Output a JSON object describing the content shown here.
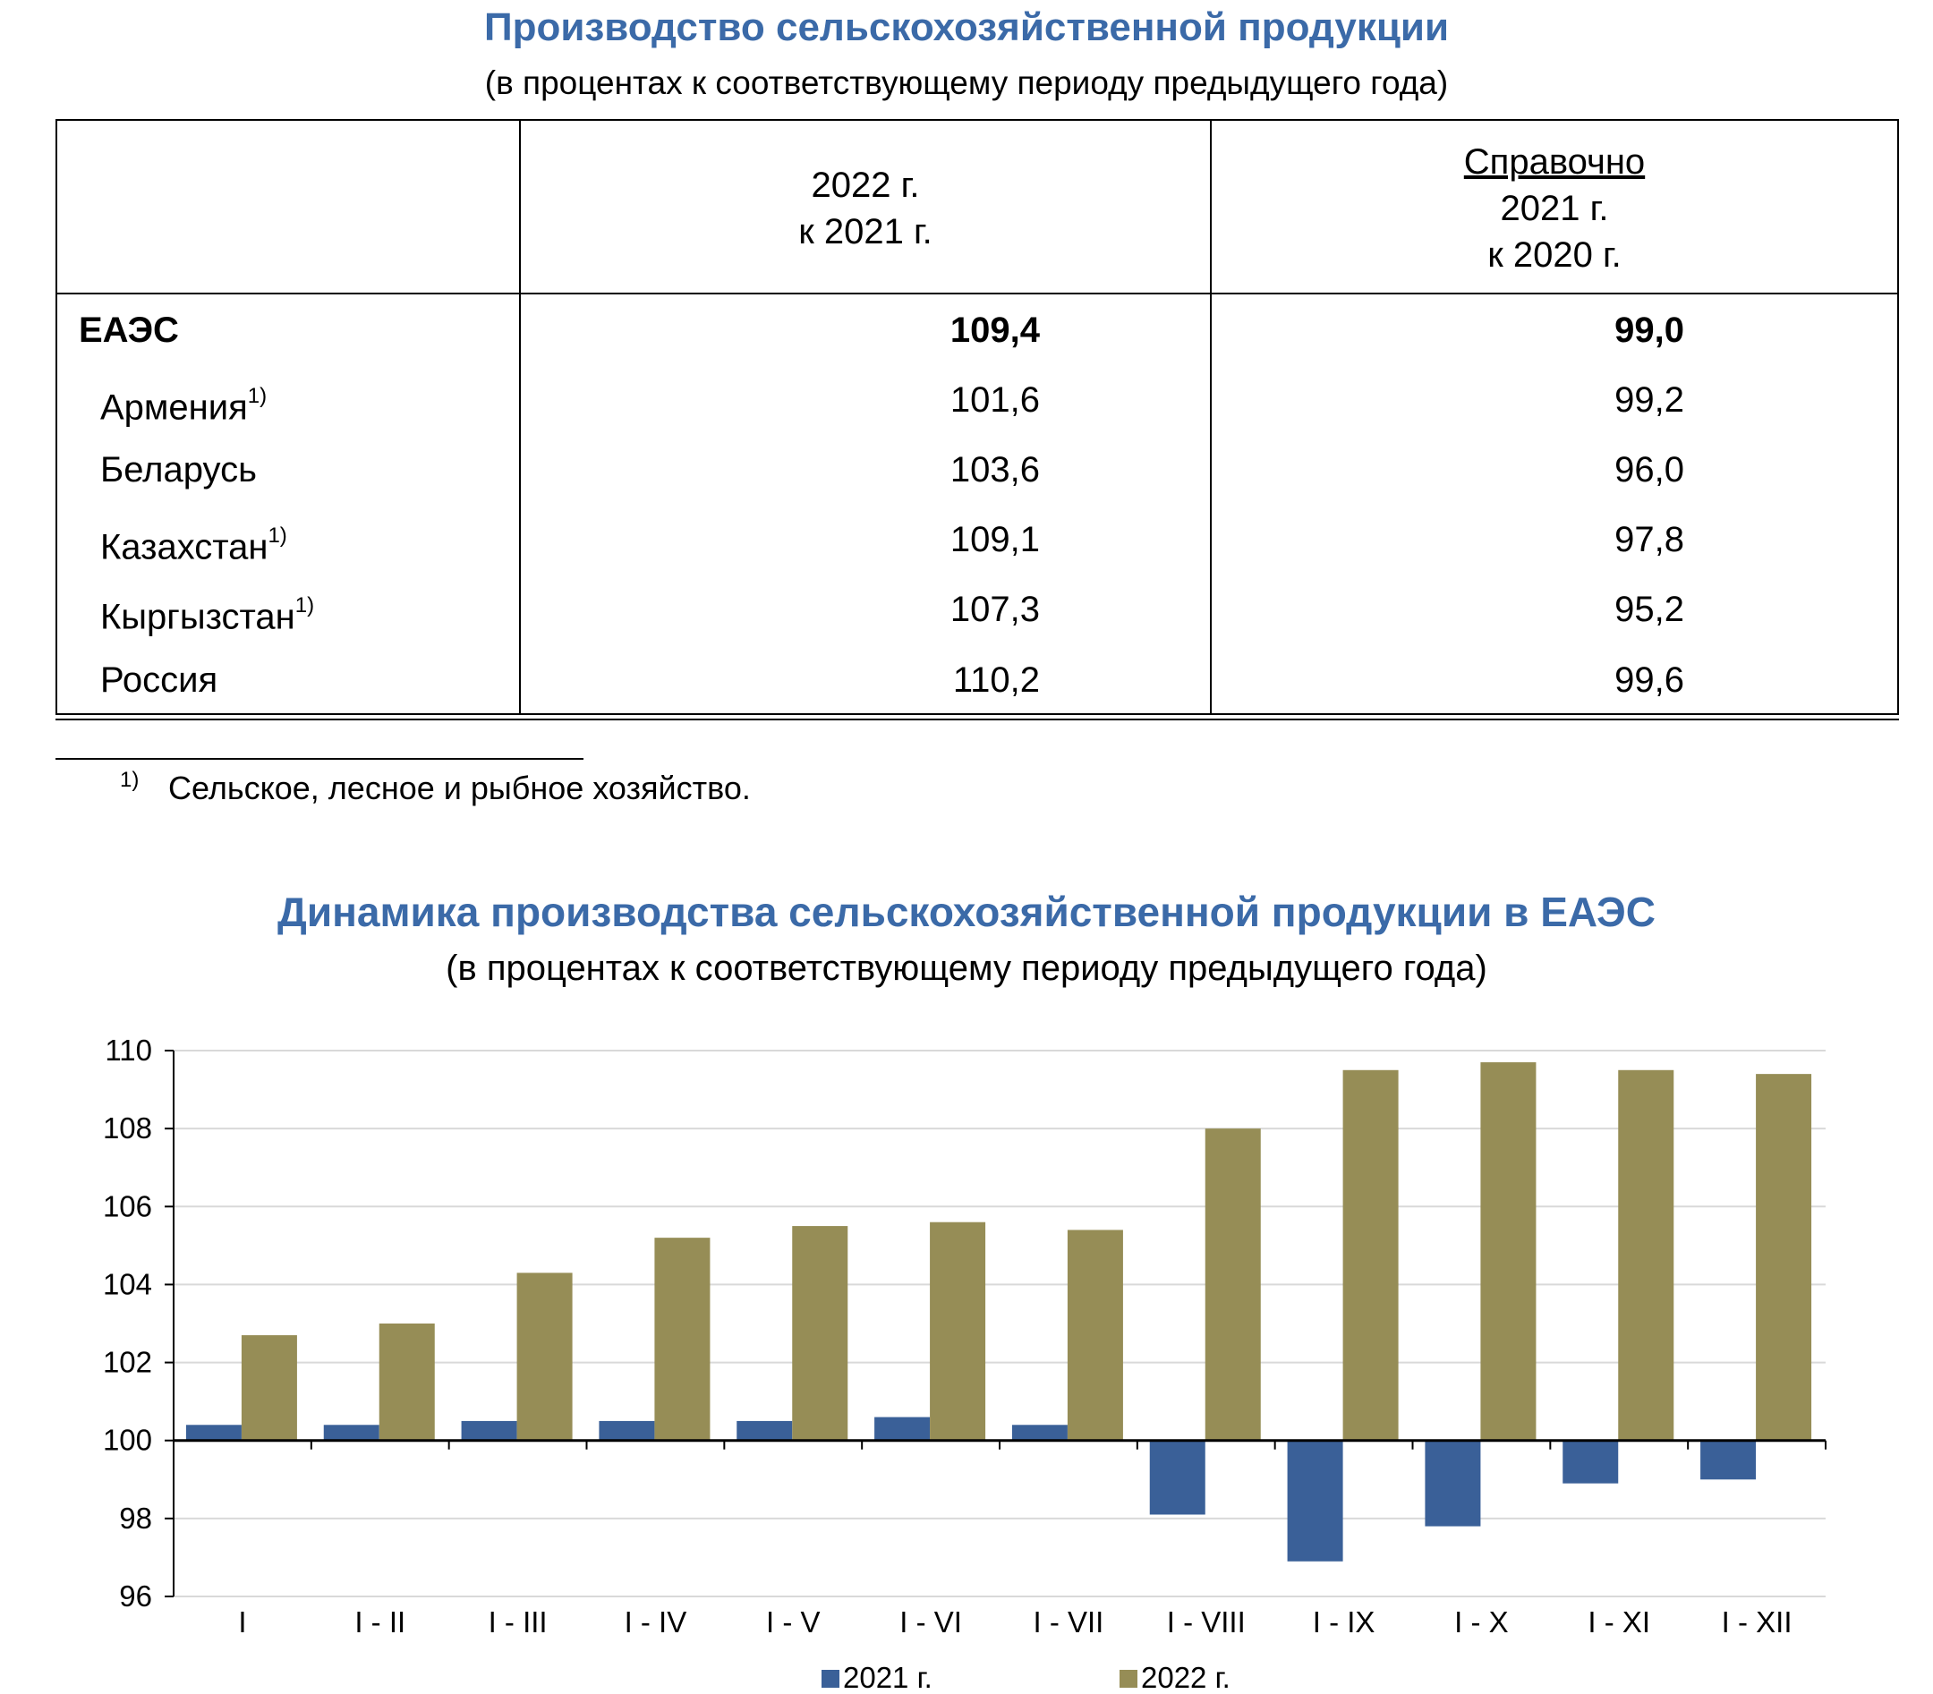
{
  "table": {
    "title": "Производство сельскохозяйственной продукции",
    "subtitle": "(в процентах к соответствующему периоду предыдущего года)",
    "col1_header": [
      "2022 г.",
      "к 2021 г."
    ],
    "col2_header_underlined": "Справочно",
    "col2_header": [
      "2021 г.",
      "к 2020 г."
    ],
    "rows": [
      {
        "name": "ЕАЭС",
        "note": "",
        "v2022": "109,4",
        "v2021": "99,0",
        "bold": true
      },
      {
        "name": "Армения",
        "note": "1)",
        "v2022": "101,6",
        "v2021": "99,2",
        "bold": false
      },
      {
        "name": "Беларусь",
        "note": "",
        "v2022": "103,6",
        "v2021": "96,0",
        "bold": false
      },
      {
        "name": "Казахстан",
        "note": "1)",
        "v2022": "109,1",
        "v2021": "97,8",
        "bold": false
      },
      {
        "name": "Кыргызстан",
        "note": "1)",
        "v2022": "107,3",
        "v2021": "95,2",
        "bold": false
      },
      {
        "name": "Россия",
        "note": "",
        "v2022": "110,2",
        "v2021": "99,6",
        "bold": false
      }
    ],
    "footnote_mark": "1)",
    "footnote": "Сельское, лесное и рыбное хозяйство."
  },
  "chart_data": {
    "type": "bar",
    "title": "Динамика производства сельскохозяйственной продукции в ЕАЭС",
    "subtitle": "(в процентах к соответствующему периоду предыдущего года)",
    "categories": [
      "I",
      "I - II",
      "I - III",
      "I - IV",
      "I - V",
      "I - VI",
      "I - VII",
      "I - VIII",
      "I - IX",
      "I - X",
      "I - XI",
      "I - XII"
    ],
    "baseline": 100,
    "ylim": [
      96,
      110
    ],
    "yticks": [
      96,
      98,
      100,
      102,
      104,
      106,
      108,
      110
    ],
    "grid": true,
    "legend_position": "bottom",
    "series": [
      {
        "name": "2021 г.",
        "color": "#3a6098",
        "values": [
          100.4,
          100.4,
          100.5,
          100.5,
          100.5,
          100.6,
          100.4,
          98.1,
          96.9,
          97.8,
          98.9,
          99.0
        ]
      },
      {
        "name": "2022 г.",
        "color": "#968d56",
        "values": [
          102.7,
          103.0,
          104.3,
          105.2,
          105.5,
          105.6,
          105.4,
          108.0,
          109.5,
          109.7,
          109.5,
          109.4
        ]
      }
    ]
  }
}
